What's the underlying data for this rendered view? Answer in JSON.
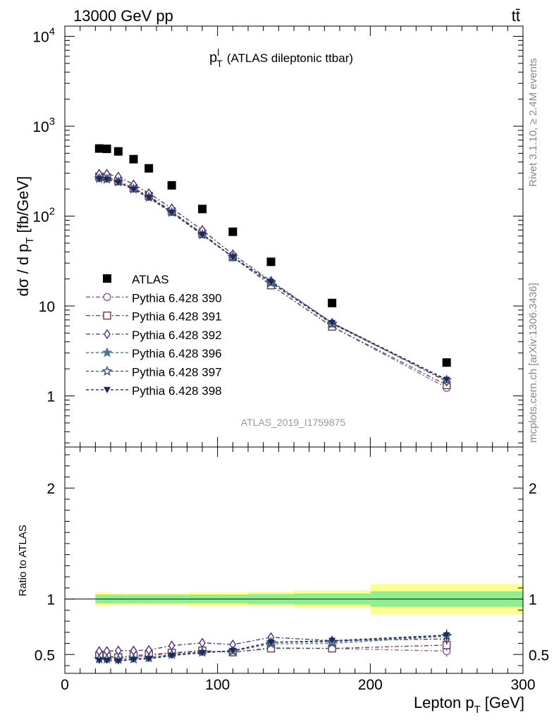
{
  "header": {
    "left": "13000 GeV pp",
    "right": "tt̄"
  },
  "side": {
    "rivet": "Rivet 3.1.10, ≥ 2.4M events",
    "mcplots": "mcplots.cern.ch [arXiv:1306.3436]"
  },
  "chart_data": [
    {
      "type": "scatter",
      "title": "p_T^l (ATLAS dileptonic ttbar)",
      "title_main": "p",
      "title_sup": "l",
      "title_sub": "T",
      "title_rest": "(ATLAS dileptonic ttbar)",
      "watermark": "ATLAS_2019_I1759875",
      "ylabel": "dσ / d p_T [fb/GeV]",
      "ylabel_main": "dσ / d p",
      "ylabel_sub": "T",
      "ylabel_rest": "[fb/GeV]",
      "yscale": "log",
      "xlim": [
        0,
        300
      ],
      "ylim": [
        0.27,
        13000
      ],
      "yticks": [
        {
          "value": 10000,
          "base": "10",
          "exp": "4"
        },
        {
          "value": 1000,
          "base": "10",
          "exp": "3"
        },
        {
          "value": 100,
          "base": "10",
          "exp": "2"
        },
        {
          "value": 10,
          "base": "10",
          "exp": ""
        },
        {
          "value": 1,
          "base": "1",
          "exp": ""
        }
      ],
      "legend_position": "left",
      "x": [
        22.5,
        27.5,
        35,
        45,
        55,
        70,
        90,
        110,
        135,
        175,
        250
      ],
      "series": [
        {
          "name": "ATLAS",
          "color": "#000000",
          "marker": "filled-square",
          "line": false,
          "values": [
            565,
            560,
            525,
            430,
            340,
            220,
            120,
            67,
            31,
            10.8,
            2.35
          ]
        },
        {
          "name": "Pythia 6.428 390",
          "color": "#8a5a8f",
          "marker": "open-circle",
          "dash": "6,3,2,3",
          "values": [
            275,
            270,
            245,
            205,
            165,
            112,
            63,
            35,
            17,
            5.9,
            1.23
          ]
        },
        {
          "name": "Pythia 6.428 391",
          "color": "#6b3a4a",
          "marker": "open-square",
          "dash": "6,3,2,3",
          "values": [
            275,
            270,
            245,
            205,
            168,
            113,
            64,
            35,
            17,
            5.9,
            1.32
          ]
        },
        {
          "name": "Pythia 6.428 392",
          "color": "#4b2a8a",
          "marker": "open-diamond",
          "dash": "6,3,2,3",
          "values": [
            295,
            295,
            275,
            225,
            180,
            122,
            70,
            37.5,
            19,
            6.5,
            1.45
          ]
        },
        {
          "name": "Pythia 6.428 396",
          "color": "#4a7a8a",
          "marker": "filled-star",
          "dash": "4,3",
          "values": [
            262,
            258,
            240,
            200,
            162,
            110,
            62,
            35,
            18,
            6.3,
            1.5
          ]
        },
        {
          "name": "Pythia 6.428 397",
          "color": "#35507a",
          "marker": "open-star",
          "dash": "4,3",
          "values": [
            262,
            258,
            240,
            200,
            162,
            110,
            62,
            35,
            18.5,
            6.4,
            1.5
          ]
        },
        {
          "name": "Pythia 6.428 398",
          "color": "#1a2a5a",
          "marker": "filled-triangle-down",
          "dash": "4,3",
          "values": [
            258,
            255,
            238,
            198,
            160,
            109,
            62,
            35,
            18.5,
            6.5,
            1.52
          ]
        }
      ]
    },
    {
      "type": "scatter",
      "ylabel": "Ratio to ATLAS",
      "xlabel": "Lepton p_T [GeV]",
      "xlabel_main": "Lepton p",
      "xlabel_sub": "T",
      "xlabel_rest": "[GeV]",
      "xlim": [
        0,
        300
      ],
      "ylim": [
        0.33,
        2.37
      ],
      "xticks": [
        "0",
        "100",
        "200",
        "300"
      ],
      "yticks": [
        "0.5",
        "1",
        "2"
      ],
      "reference_line": 1,
      "bands": [
        {
          "x": [
            20,
            25
          ],
          "inner": 0.04,
          "outer": 0.06
        },
        {
          "x": [
            25,
            30
          ],
          "inner": 0.04,
          "outer": 0.06
        },
        {
          "x": [
            30,
            40
          ],
          "inner": 0.04,
          "outer": 0.055
        },
        {
          "x": [
            40,
            50
          ],
          "inner": 0.04,
          "outer": 0.055
        },
        {
          "x": [
            50,
            60
          ],
          "inner": 0.04,
          "outer": 0.055
        },
        {
          "x": [
            60,
            80
          ],
          "inner": 0.04,
          "outer": 0.055
        },
        {
          "x": [
            80,
            100
          ],
          "inner": 0.04,
          "outer": 0.06
        },
        {
          "x": [
            100,
            120
          ],
          "inner": 0.04,
          "outer": 0.06
        },
        {
          "x": [
            120,
            150
          ],
          "inner": 0.045,
          "outer": 0.065
        },
        {
          "x": [
            150,
            200
          ],
          "inner": 0.05,
          "outer": 0.08
        },
        {
          "x": [
            200,
            300
          ],
          "inner": 0.07,
          "outer": 0.135
        }
      ],
      "band_colors": {
        "inner": "#90ee90",
        "outer": "#ffff90"
      },
      "x": [
        22.5,
        27.5,
        35,
        45,
        55,
        70,
        90,
        110,
        135,
        175,
        250
      ],
      "series": [
        {
          "name": "Pythia 6.428 390",
          "values": [
            0.49,
            0.48,
            0.47,
            0.48,
            0.49,
            0.51,
            0.53,
            0.52,
            0.56,
            0.555,
            0.53
          ]
        },
        {
          "name": "Pythia 6.428 391",
          "values": [
            0.49,
            0.485,
            0.475,
            0.49,
            0.5,
            0.515,
            0.535,
            0.52,
            0.555,
            0.555,
            0.585
          ]
        },
        {
          "name": "Pythia 6.428 392",
          "values": [
            0.53,
            0.53,
            0.535,
            0.535,
            0.54,
            0.58,
            0.605,
            0.59,
            0.655,
            0.625,
            0.64
          ]
        },
        {
          "name": "Pythia 6.428 396",
          "values": [
            0.46,
            0.46,
            0.455,
            0.46,
            0.47,
            0.5,
            0.52,
            0.53,
            0.595,
            0.6,
            0.665
          ]
        },
        {
          "name": "Pythia 6.428 397",
          "values": [
            0.46,
            0.46,
            0.455,
            0.46,
            0.47,
            0.5,
            0.52,
            0.53,
            0.61,
            0.615,
            0.67
          ]
        },
        {
          "name": "Pythia 6.428 398",
          "values": [
            0.445,
            0.445,
            0.44,
            0.455,
            0.46,
            0.49,
            0.515,
            0.535,
            0.61,
            0.625,
            0.675
          ]
        }
      ]
    }
  ]
}
